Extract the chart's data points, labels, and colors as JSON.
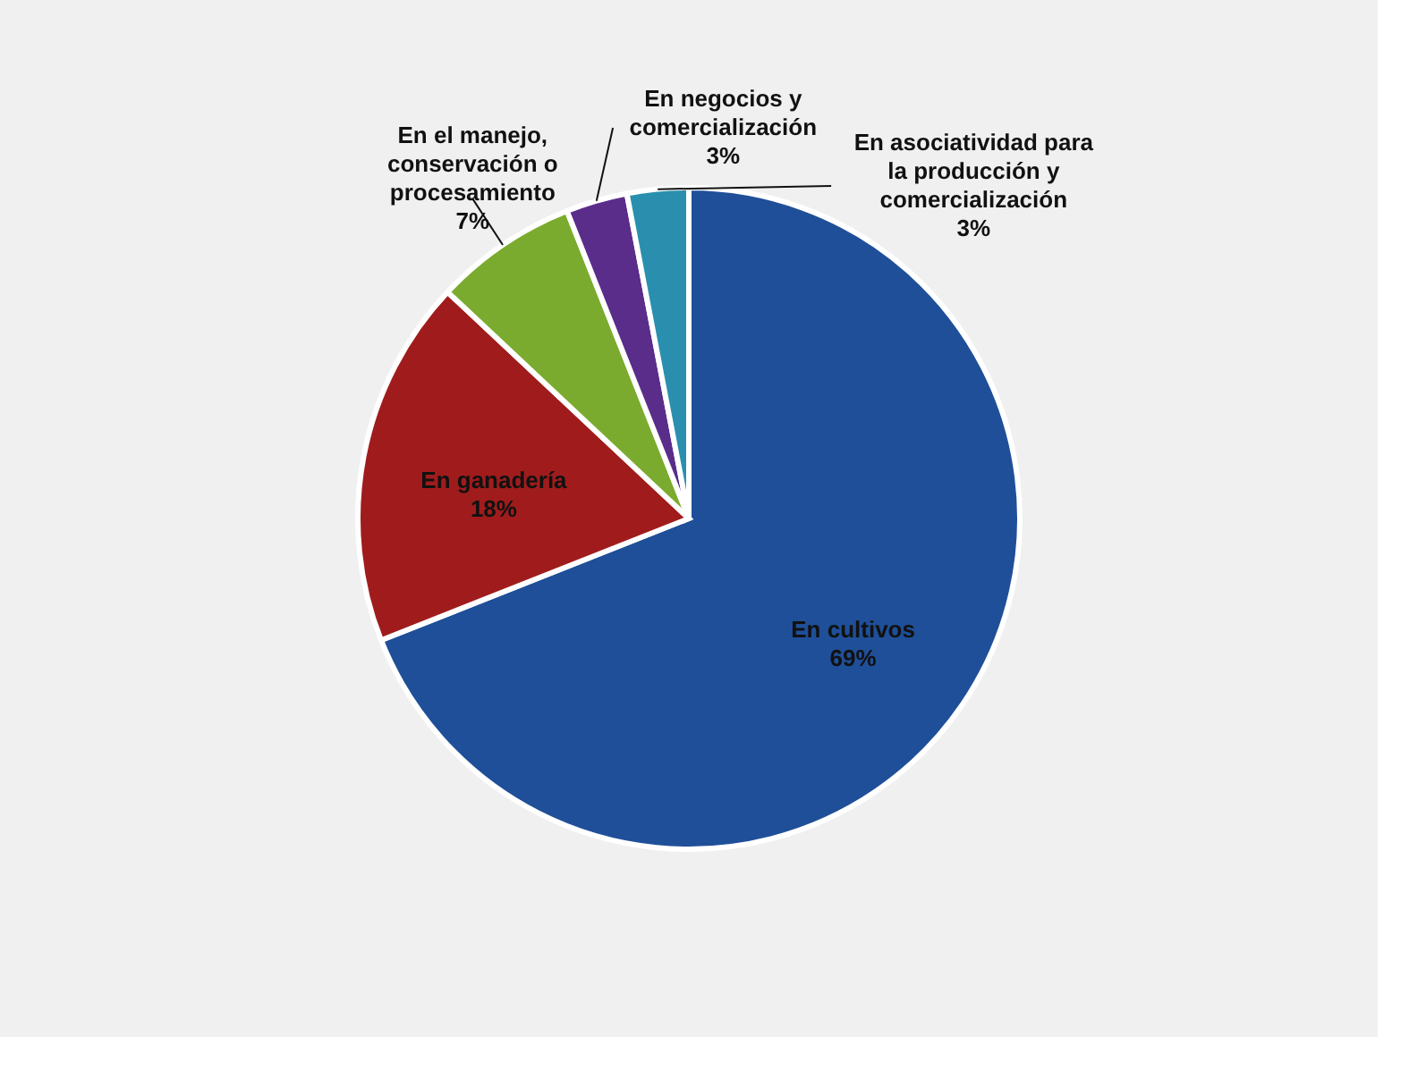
{
  "chart_data": {
    "type": "pie",
    "categories": [
      "En cultivos",
      "En ganadería",
      "En el manejo, conservación o procesamiento",
      "En negocios y comercialización",
      "En asociatividad para la producción y comercialización"
    ],
    "values": [
      69,
      18,
      7,
      3,
      3
    ],
    "value_labels": [
      "69%",
      "18%",
      "7%",
      "3%",
      "3%"
    ],
    "colors": [
      "#1f4f99",
      "#a01c1c",
      "#7bab2e",
      "#5a2d8a",
      "#2a8fae"
    ],
    "legend": false
  }
}
